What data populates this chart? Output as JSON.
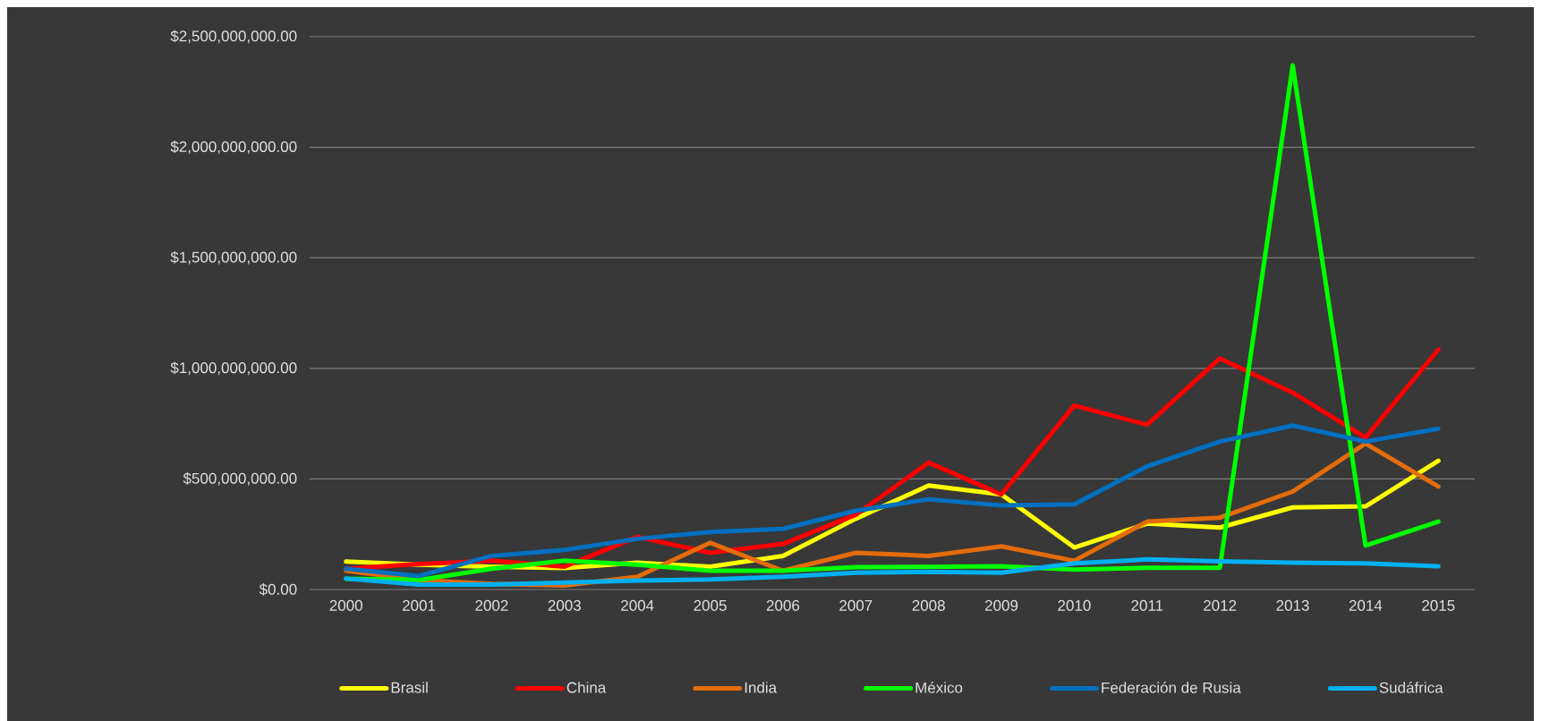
{
  "chart_data": {
    "type": "line",
    "categories": [
      "2000",
      "2001",
      "2002",
      "2003",
      "2004",
      "2005",
      "2006",
      "2007",
      "2008",
      "2009",
      "2010",
      "2011",
      "2012",
      "2013",
      "2014",
      "2015"
    ],
    "series": [
      {
        "name": "Brasil",
        "color": "#ffff00",
        "values": [
          126000000,
          112000000,
          103000000,
          97000000,
          121000000,
          103000000,
          152000000,
          320000000,
          470000000,
          430000000,
          190000000,
          298000000,
          280000000,
          371000000,
          376000000,
          582000000
        ]
      },
      {
        "name": "China",
        "color": "#ff0000",
        "values": [
          94000000,
          115000000,
          130000000,
          103000000,
          238000000,
          166000000,
          206000000,
          338000000,
          574000000,
          430000000,
          832000000,
          745000000,
          1045000000,
          890000000,
          687000000,
          1085000000
        ]
      },
      {
        "name": "India",
        "color": "#e46c0a",
        "values": [
          85000000,
          43000000,
          25000000,
          18000000,
          58000000,
          211000000,
          85000000,
          166000000,
          152000000,
          195000000,
          130000000,
          307000000,
          325000000,
          443000000,
          660000000,
          466000000
        ]
      },
      {
        "name": "México",
        "color": "#00ff00",
        "values": [
          49000000,
          43000000,
          94000000,
          130000000,
          112000000,
          85000000,
          85000000,
          101000000,
          103000000,
          105000000,
          90000000,
          98000000,
          98000000,
          2370000000,
          199000000,
          307000000
        ]
      },
      {
        "name": "Federación de Rusia",
        "color": "#0070c0",
        "values": [
          94000000,
          61000000,
          152000000,
          179000000,
          229000000,
          260000000,
          274000000,
          356000000,
          408000000,
          380000000,
          385000000,
          557000000,
          669000000,
          741000000,
          669000000,
          727000000
        ]
      },
      {
        "name": "Sudáfrica",
        "color": "#00b0f0",
        "values": [
          49000000,
          22000000,
          22000000,
          31000000,
          40000000,
          45000000,
          58000000,
          76000000,
          80000000,
          76000000,
          118000000,
          136000000,
          127000000,
          121000000,
          118000000,
          105000000
        ]
      }
    ],
    "ylim": [
      0,
      2500000000
    ],
    "yticks": [
      {
        "value": 0,
        "label": "$0.00"
      },
      {
        "value": 500000000,
        "label": "$500,000,000.00"
      },
      {
        "value": 1000000000,
        "label": "$1,000,000,000.00"
      },
      {
        "value": 1500000000,
        "label": "$1,500,000,000.00"
      },
      {
        "value": 2000000000,
        "label": "$2,000,000,000.00"
      },
      {
        "value": 2500000000,
        "label": "$2,500,000,000.00"
      }
    ],
    "grid": "y",
    "legend": "bottom",
    "marker": "none",
    "line_style": "solid"
  }
}
